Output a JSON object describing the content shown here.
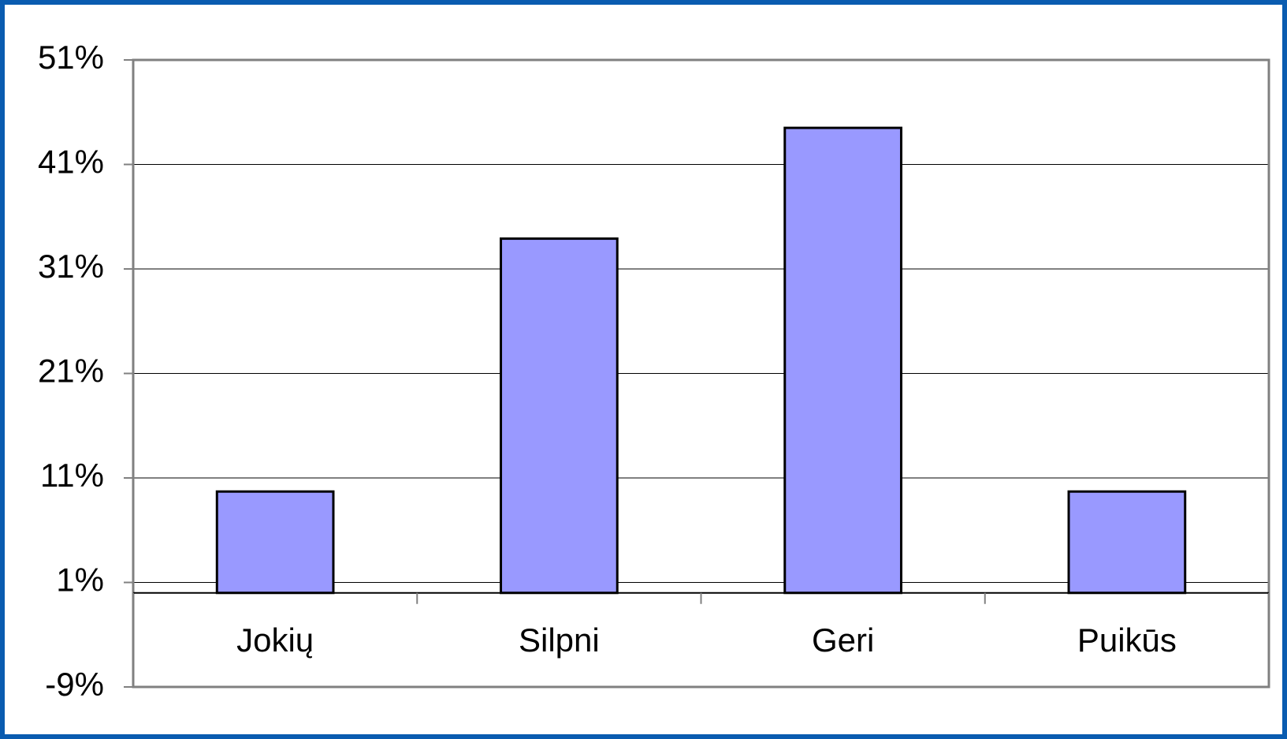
{
  "chart_data": {
    "type": "bar",
    "categories": [
      "Jokių",
      "Silpni",
      "Geri",
      "Puikūs"
    ],
    "values": [
      9.7,
      33.9,
      44.5,
      9.7
    ],
    "color": "#9999ff",
    "ylim": [
      -9,
      51
    ],
    "yticks": [
      {
        "value": -9,
        "label": "-9%"
      },
      {
        "value": 1,
        "label": "1%"
      },
      {
        "value": 11,
        "label": "11%"
      },
      {
        "value": 21,
        "label": "21%"
      },
      {
        "value": 31,
        "label": "31%"
      },
      {
        "value": 41,
        "label": "41%"
      },
      {
        "value": 51,
        "label": "51%"
      }
    ],
    "grid": true
  }
}
